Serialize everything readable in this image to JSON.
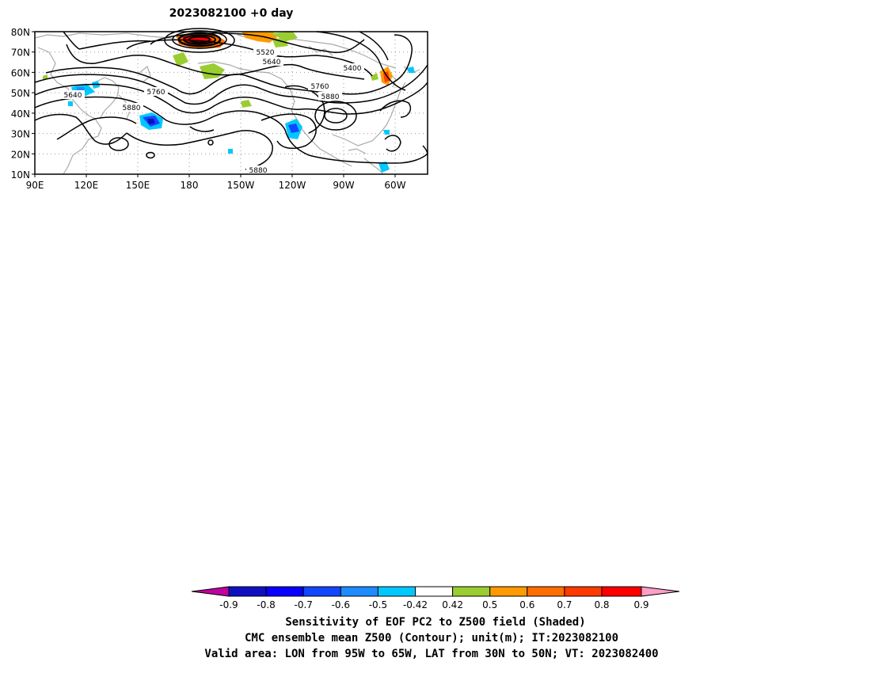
{
  "title": "2023082100 +0 day",
  "lat_labels": [
    "80N",
    "70N",
    "60N",
    "50N",
    "40N",
    "30N",
    "20N",
    "10N"
  ],
  "lon_labels": [
    "90E",
    "120E",
    "150E",
    "180",
    "150W",
    "120W",
    "90W",
    "60W"
  ],
  "contour_labels": {
    "c5520": "5520",
    "c5640a": "5640",
    "c5400": "5400",
    "c5760a": "5760",
    "c5880a": "5880",
    "c5640b": "5640",
    "c5760b": "5760",
    "c5880b": "5880",
    "c5880c": "5880"
  },
  "colorbar": {
    "colors": [
      "#c000a0",
      "#1010c0",
      "#0a00ff",
      "#1246ff",
      "#1e8cff",
      "#00c8ff",
      "#ffffff",
      "#9acd32",
      "#ff9a00",
      "#ff6e00",
      "#ff3a00",
      "#ff0000",
      "#ff9ec8"
    ],
    "labels": [
      "-0.9",
      "-0.8",
      "-0.7",
      "-0.6",
      "-0.5",
      "-0.42",
      "0.42",
      "0.5",
      "0.6",
      "0.7",
      "0.8",
      "0.9"
    ]
  },
  "caption": {
    "line1": "Sensitivity of EOF PC2 to Z500 field (Shaded)",
    "line2": "CMC ensemble mean Z500 (Contour); unit(m); IT:2023082100",
    "line3": "Valid area: LON from 95W to 65W, LAT from 30N to 50N; VT: 2023082400"
  }
}
